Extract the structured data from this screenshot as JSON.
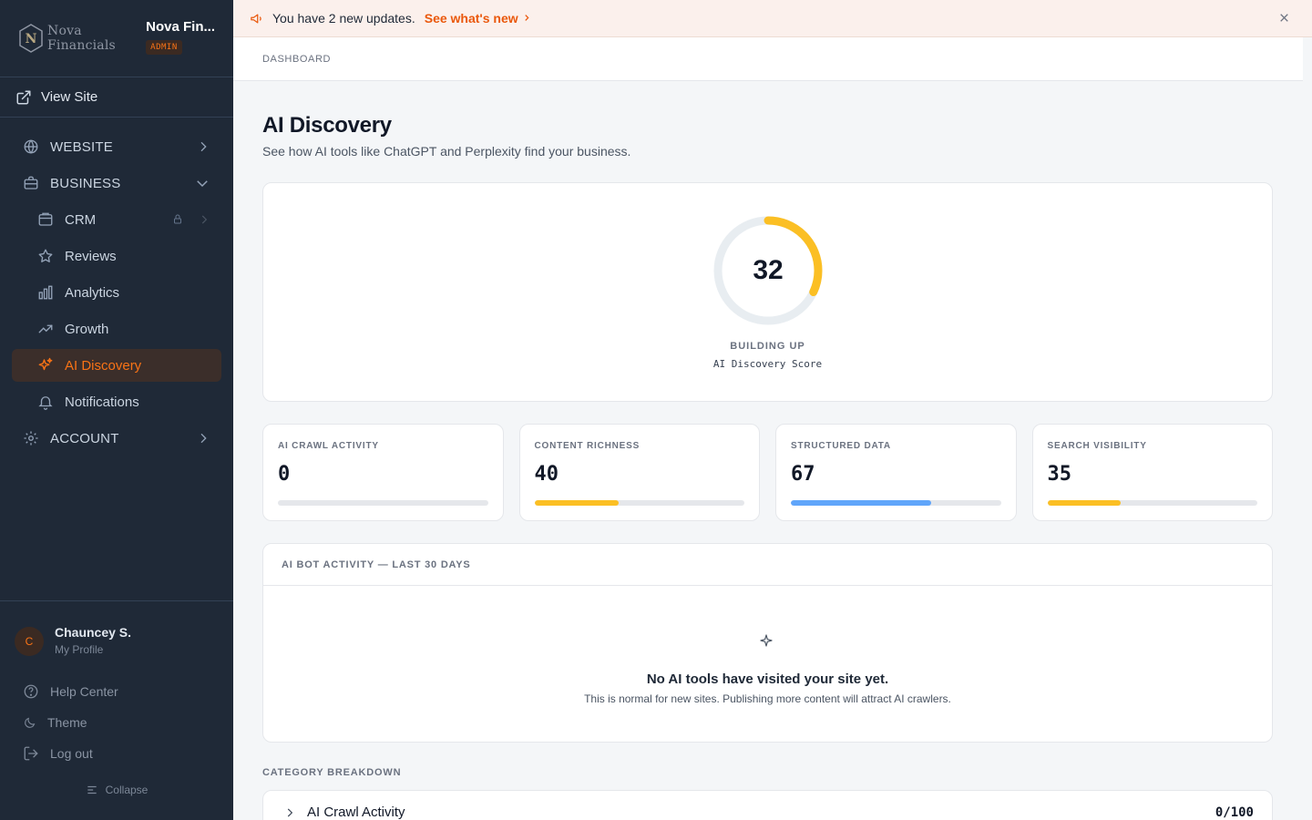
{
  "brand": {
    "logo_text": "Nova Financials",
    "org_name": "Nova Fin...",
    "role_badge": "ADMIN"
  },
  "sidebar": {
    "view_site": "View Site",
    "items": [
      {
        "label": "WEBSITE"
      },
      {
        "label": "BUSINESS"
      },
      {
        "label": "CRM"
      },
      {
        "label": "Reviews"
      },
      {
        "label": "Analytics"
      },
      {
        "label": "Growth"
      },
      {
        "label": "AI Discovery"
      },
      {
        "label": "Notifications"
      },
      {
        "label": "ACCOUNT"
      }
    ],
    "user": {
      "initial": "C",
      "name": "Chauncey S.",
      "sub": "My Profile"
    },
    "bottom": [
      {
        "label": "Help Center"
      },
      {
        "label": "Theme"
      },
      {
        "label": "Log out"
      }
    ],
    "collapse": "Collapse"
  },
  "banner": {
    "message": "You have 2 new updates.",
    "link": "See what's new"
  },
  "breadcrumb": "DASHBOARD",
  "page": {
    "title": "AI Discovery",
    "subtitle": "See how AI tools like ChatGPT and Perplexity find your business."
  },
  "score": {
    "value": "32",
    "percent": 32,
    "status": "BUILDING UP",
    "label": "AI Discovery Score",
    "color": "#fbbf24"
  },
  "metrics": [
    {
      "label": "AI CRAWL ACTIVITY",
      "value": "0",
      "percent": 0,
      "color": "#fbbf24"
    },
    {
      "label": "CONTENT RICHNESS",
      "value": "40",
      "percent": 40,
      "color": "#fbbf24"
    },
    {
      "label": "STRUCTURED DATA",
      "value": "67",
      "percent": 67,
      "color": "#60a5fa"
    },
    {
      "label": "SEARCH VISIBILITY",
      "value": "35",
      "percent": 35,
      "color": "#fbbf24"
    }
  ],
  "activity": {
    "title": "AI BOT ACTIVITY — LAST 30 DAYS",
    "empty_title": "No AI tools have visited your site yet.",
    "empty_sub": "This is normal for new sites. Publishing more content will attract AI crawlers."
  },
  "categories": {
    "title": "CATEGORY BREAKDOWN",
    "rows": [
      {
        "name": "AI Crawl Activity",
        "value": "0/100"
      }
    ]
  }
}
